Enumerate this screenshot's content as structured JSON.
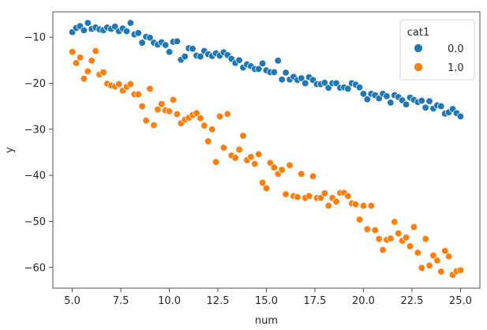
{
  "chart_data": {
    "type": "scatter",
    "title": "",
    "xlabel": "num",
    "ylabel": "y",
    "xlim": [
      4.0,
      26.0
    ],
    "ylim": [
      -64.5,
      -4.5
    ],
    "x_ticks": [
      5.0,
      7.5,
      10.0,
      12.5,
      15.0,
      17.5,
      20.0,
      22.5,
      25.0
    ],
    "x_tick_labels": [
      "5.0",
      "7.5",
      "10.0",
      "12.5",
      "15.0",
      "17.5",
      "20.0",
      "22.5",
      "25.0"
    ],
    "y_ticks": [
      -10,
      -20,
      -30,
      -40,
      -50,
      -60
    ],
    "y_tick_labels": [
      "−10",
      "−20",
      "−30",
      "−40",
      "−50",
      "−60"
    ],
    "grid": false,
    "legend": {
      "title": "cat1",
      "placement": "top-right",
      "entries": [
        {
          "label": "0.0",
          "color": "#1f77b4"
        },
        {
          "label": "1.0",
          "color": "#ff7f0e"
        }
      ]
    },
    "series": [
      {
        "name": "0.0",
        "color": "#1f77b4",
        "points": [
          [
            5.0,
            -8.9
          ],
          [
            5.2,
            -8.0
          ],
          [
            5.4,
            -7.6
          ],
          [
            5.6,
            -8.5
          ],
          [
            5.8,
            -6.9
          ],
          [
            6.0,
            -8.2
          ],
          [
            6.2,
            -7.9
          ],
          [
            6.4,
            -8.3
          ],
          [
            6.6,
            -8.5
          ],
          [
            6.8,
            -7.9
          ],
          [
            7.0,
            -8.2
          ],
          [
            7.2,
            -7.7
          ],
          [
            7.4,
            -8.7
          ],
          [
            7.6,
            -8.1
          ],
          [
            7.8,
            -8.7
          ],
          [
            8.0,
            -6.9
          ],
          [
            8.2,
            -9.4
          ],
          [
            8.4,
            -9.1
          ],
          [
            8.6,
            -11.2
          ],
          [
            8.8,
            -9.9
          ],
          [
            9.0,
            -10.1
          ],
          [
            9.2,
            -11.2
          ],
          [
            9.4,
            -11.6
          ],
          [
            9.6,
            -11.1
          ],
          [
            9.8,
            -11.7
          ],
          [
            10.0,
            -13.2
          ],
          [
            10.2,
            -11.0
          ],
          [
            10.4,
            -10.9
          ],
          [
            10.6,
            -14.9
          ],
          [
            10.8,
            -14.2
          ],
          [
            11.0,
            -12.4
          ],
          [
            11.2,
            -12.5
          ],
          [
            11.4,
            -14.0
          ],
          [
            11.6,
            -14.2
          ],
          [
            11.8,
            -13.0
          ],
          [
            12.0,
            -13.7
          ],
          [
            12.2,
            -14.1
          ],
          [
            12.4,
            -13.5
          ],
          [
            12.6,
            -14.0
          ],
          [
            12.8,
            -13.3
          ],
          [
            13.0,
            -13.9
          ],
          [
            13.2,
            -14.7
          ],
          [
            13.4,
            -15.6
          ],
          [
            13.6,
            -15.0
          ],
          [
            13.8,
            -16.6
          ],
          [
            14.0,
            -15.9
          ],
          [
            14.2,
            -16.3
          ],
          [
            14.4,
            -16.9
          ],
          [
            14.6,
            -16.9
          ],
          [
            14.8,
            -15.7
          ],
          [
            15.0,
            -17.2
          ],
          [
            15.2,
            -17.6
          ],
          [
            15.4,
            -17.6
          ],
          [
            15.6,
            -15.1
          ],
          [
            15.8,
            -19.2
          ],
          [
            16.0,
            -17.7
          ],
          [
            16.2,
            -19.2
          ],
          [
            16.4,
            -18.6
          ],
          [
            16.6,
            -19.3
          ],
          [
            16.8,
            -18.9
          ],
          [
            17.0,
            -20.0
          ],
          [
            17.2,
            -18.7
          ],
          [
            17.4,
            -19.3
          ],
          [
            17.6,
            -20.2
          ],
          [
            17.8,
            -20.2
          ],
          [
            18.0,
            -19.9
          ],
          [
            18.2,
            -21.0
          ],
          [
            18.4,
            -20.0
          ],
          [
            18.6,
            -20.0
          ],
          [
            18.8,
            -21.0
          ],
          [
            19.0,
            -20.9
          ],
          [
            19.2,
            -21.2
          ],
          [
            19.4,
            -20.0
          ],
          [
            19.6,
            -20.3
          ],
          [
            19.8,
            -20.9
          ],
          [
            20.0,
            -22.3
          ],
          [
            20.2,
            -23.5
          ],
          [
            20.4,
            -22.3
          ],
          [
            20.6,
            -22.6
          ],
          [
            20.8,
            -23.3
          ],
          [
            21.0,
            -22.3
          ],
          [
            21.2,
            -22.8
          ],
          [
            21.4,
            -24.2
          ],
          [
            21.6,
            -22.6
          ],
          [
            21.8,
            -23.0
          ],
          [
            22.0,
            -23.7
          ],
          [
            22.2,
            -24.6
          ],
          [
            22.4,
            -23.1
          ],
          [
            22.6,
            -23.6
          ],
          [
            22.8,
            -24.1
          ],
          [
            23.0,
            -23.8
          ],
          [
            23.2,
            -25.3
          ],
          [
            23.4,
            -23.9
          ],
          [
            23.6,
            -25.5
          ],
          [
            23.8,
            -24.8
          ],
          [
            24.0,
            -25.0
          ],
          [
            24.2,
            -26.6
          ],
          [
            24.4,
            -26.3
          ],
          [
            24.6,
            -25.6
          ],
          [
            24.8,
            -26.5
          ],
          [
            25.0,
            -27.2
          ]
        ]
      },
      {
        "name": "1.0",
        "color": "#ff7f0e",
        "points": [
          [
            5.0,
            -13.2
          ],
          [
            5.2,
            -15.6
          ],
          [
            5.4,
            -14.4
          ],
          [
            5.6,
            -19.0
          ],
          [
            5.8,
            -17.4
          ],
          [
            6.0,
            -15.1
          ],
          [
            6.2,
            -13.0
          ],
          [
            6.4,
            -18.1
          ],
          [
            6.6,
            -17.6
          ],
          [
            6.8,
            -20.1
          ],
          [
            7.0,
            -20.5
          ],
          [
            7.2,
            -20.7
          ],
          [
            7.4,
            -20.2
          ],
          [
            7.6,
            -21.6
          ],
          [
            7.8,
            -20.8
          ],
          [
            8.0,
            -20.2
          ],
          [
            8.2,
            -22.4
          ],
          [
            8.4,
            -22.4
          ],
          [
            8.6,
            -25.0
          ],
          [
            8.8,
            -28.1
          ],
          [
            9.0,
            -21.2
          ],
          [
            9.2,
            -29.1
          ],
          [
            9.4,
            -25.7
          ],
          [
            9.6,
            -24.5
          ],
          [
            9.8,
            -25.9
          ],
          [
            10.0,
            -26.1
          ],
          [
            10.2,
            -23.6
          ],
          [
            10.4,
            -26.7
          ],
          [
            10.6,
            -28.7
          ],
          [
            10.8,
            -27.9
          ],
          [
            11.0,
            -27.5
          ],
          [
            11.2,
            -26.9
          ],
          [
            11.4,
            -26.5
          ],
          [
            11.6,
            -27.6
          ],
          [
            11.8,
            -29.2
          ],
          [
            12.0,
            -32.6
          ],
          [
            12.2,
            -30.0
          ],
          [
            12.4,
            -37.1
          ],
          [
            12.6,
            -27.2
          ],
          [
            12.8,
            -34.0
          ],
          [
            13.0,
            -26.7
          ],
          [
            13.2,
            -35.7
          ],
          [
            13.4,
            -36.2
          ],
          [
            13.6,
            -34.4
          ],
          [
            13.8,
            -31.4
          ],
          [
            14.0,
            -36.7
          ],
          [
            14.2,
            -36.0
          ],
          [
            14.4,
            -37.5
          ],
          [
            14.6,
            -35.4
          ],
          [
            14.8,
            -41.6
          ],
          [
            15.0,
            -42.8
          ],
          [
            15.2,
            -37.3
          ],
          [
            15.4,
            -38.3
          ],
          [
            15.6,
            -39.7
          ],
          [
            15.8,
            -38.8
          ],
          [
            16.0,
            -44.1
          ],
          [
            16.2,
            -37.8
          ],
          [
            16.4,
            -44.5
          ],
          [
            16.6,
            -44.7
          ],
          [
            16.8,
            -39.7
          ],
          [
            17.0,
            -44.9
          ],
          [
            17.2,
            -44.5
          ],
          [
            17.4,
            -40.2
          ],
          [
            17.6,
            -44.9
          ],
          [
            17.8,
            -44.9
          ],
          [
            18.0,
            -43.9
          ],
          [
            18.2,
            -46.6
          ],
          [
            18.4,
            -44.9
          ],
          [
            18.6,
            -45.7
          ],
          [
            18.8,
            -43.8
          ],
          [
            19.0,
            -43.8
          ],
          [
            19.2,
            -44.5
          ],
          [
            19.4,
            -46.1
          ],
          [
            19.6,
            -46.3
          ],
          [
            19.8,
            -49.6
          ],
          [
            20.0,
            -46.6
          ],
          [
            20.2,
            -51.7
          ],
          [
            20.4,
            -46.6
          ],
          [
            20.6,
            -51.9
          ],
          [
            20.8,
            -53.8
          ],
          [
            21.0,
            -56.2
          ],
          [
            21.2,
            -54.0
          ],
          [
            21.4,
            -53.7
          ],
          [
            21.6,
            -50.1
          ],
          [
            21.8,
            -52.6
          ],
          [
            22.0,
            -54.2
          ],
          [
            22.2,
            -53.5
          ],
          [
            22.4,
            -55.4
          ],
          [
            22.6,
            -51.2
          ],
          [
            22.8,
            -56.8
          ],
          [
            23.0,
            -60.1
          ],
          [
            23.2,
            -53.8
          ],
          [
            23.4,
            -59.6
          ],
          [
            23.6,
            -57.4
          ],
          [
            23.8,
            -58.5
          ],
          [
            24.0,
            -60.9
          ],
          [
            24.2,
            -56.4
          ],
          [
            24.4,
            -57.6
          ],
          [
            24.6,
            -61.6
          ],
          [
            24.8,
            -60.8
          ],
          [
            25.0,
            -60.6
          ]
        ]
      }
    ]
  }
}
